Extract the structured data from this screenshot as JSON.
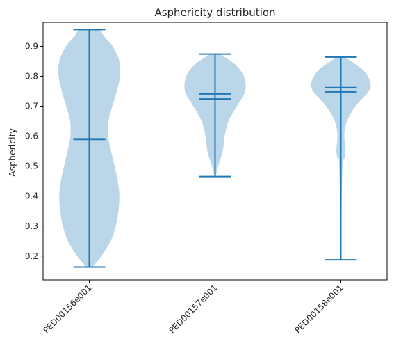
{
  "chart_data": {
    "type": "violin",
    "title": "Asphericity distribution",
    "xlabel": "",
    "ylabel": "Asphericity",
    "categories": [
      "PED00156e001",
      "PED00157e001",
      "PED00158e001"
    ],
    "ylim": [
      0.12,
      0.98
    ],
    "yticks": [
      0.2,
      0.3,
      0.4,
      0.5,
      0.6,
      0.7,
      0.8,
      0.9
    ],
    "ytick_labels": [
      "0.2",
      "0.3",
      "0.4",
      "0.5",
      "0.6",
      "0.7",
      "0.8",
      "0.9"
    ],
    "grid": false,
    "series": [
      {
        "category": "PED00156e001",
        "min": 0.163,
        "max": 0.956,
        "mean": 0.591,
        "median": 0.589,
        "profile": [
          [
            0.163,
            0.1
          ],
          [
            0.2,
            0.38
          ],
          [
            0.25,
            0.67
          ],
          [
            0.3,
            0.83
          ],
          [
            0.35,
            0.91
          ],
          [
            0.4,
            0.94
          ],
          [
            0.45,
            0.89
          ],
          [
            0.5,
            0.79
          ],
          [
            0.55,
            0.68
          ],
          [
            0.6,
            0.59
          ],
          [
            0.65,
            0.6
          ],
          [
            0.7,
            0.72
          ],
          [
            0.75,
            0.86
          ],
          [
            0.8,
            0.96
          ],
          [
            0.85,
            0.94
          ],
          [
            0.9,
            0.73
          ],
          [
            0.93,
            0.49
          ],
          [
            0.956,
            0.33
          ]
        ]
      },
      {
        "category": "PED00157e001",
        "min": 0.465,
        "max": 0.874,
        "mean": 0.741,
        "median": 0.724,
        "profile": [
          [
            0.465,
            0.02
          ],
          [
            0.5,
            0.1
          ],
          [
            0.55,
            0.24
          ],
          [
            0.6,
            0.3
          ],
          [
            0.65,
            0.42
          ],
          [
            0.7,
            0.68
          ],
          [
            0.75,
            0.94
          ],
          [
            0.8,
            0.9
          ],
          [
            0.84,
            0.62
          ],
          [
            0.874,
            0.15
          ]
        ]
      },
      {
        "category": "PED00158e001",
        "min": 0.187,
        "max": 0.864,
        "mean": 0.762,
        "median": 0.748,
        "profile": [
          [
            0.187,
            0.0
          ],
          [
            0.5,
            0.05
          ],
          [
            0.52,
            0.1
          ],
          [
            0.55,
            0.14
          ],
          [
            0.58,
            0.12
          ],
          [
            0.61,
            0.11
          ],
          [
            0.65,
            0.19
          ],
          [
            0.7,
            0.46
          ],
          [
            0.75,
            0.87
          ],
          [
            0.78,
            0.92
          ],
          [
            0.82,
            0.7
          ],
          [
            0.864,
            0.12
          ]
        ]
      }
    ],
    "colors": {
      "body": "#1f77b4",
      "line": "#1f77b4",
      "axis": "#000000",
      "text": "#262626"
    }
  }
}
